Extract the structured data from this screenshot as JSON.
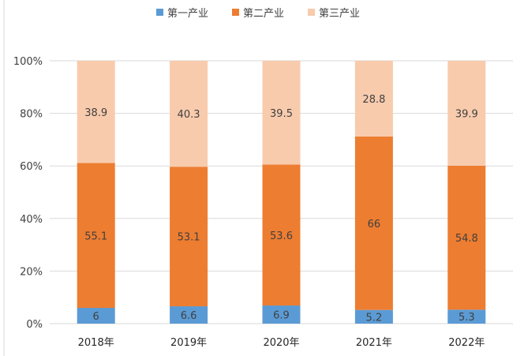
{
  "chart_data": {
    "type": "bar",
    "stacked": true,
    "normalized": true,
    "categories": [
      "2018年",
      "2019年",
      "2020年",
      "2021年",
      "2022年"
    ],
    "series": [
      {
        "name": "第一产业",
        "color": "#5B9BD5",
        "values": [
          6,
          6.6,
          6.9,
          5.2,
          5.3
        ]
      },
      {
        "name": "第二产业",
        "color": "#ED7D31",
        "values": [
          55.1,
          53.1,
          53.6,
          66,
          54.8
        ]
      },
      {
        "name": "第三产业",
        "color": "#F8CBAD",
        "values": [
          38.9,
          40.3,
          39.5,
          28.8,
          39.9
        ]
      }
    ],
    "y_ticks": [
      "0%",
      "20%",
      "40%",
      "60%",
      "80%",
      "100%"
    ],
    "ylim": [
      0,
      100
    ],
    "grid": true,
    "legend_position": "top"
  }
}
